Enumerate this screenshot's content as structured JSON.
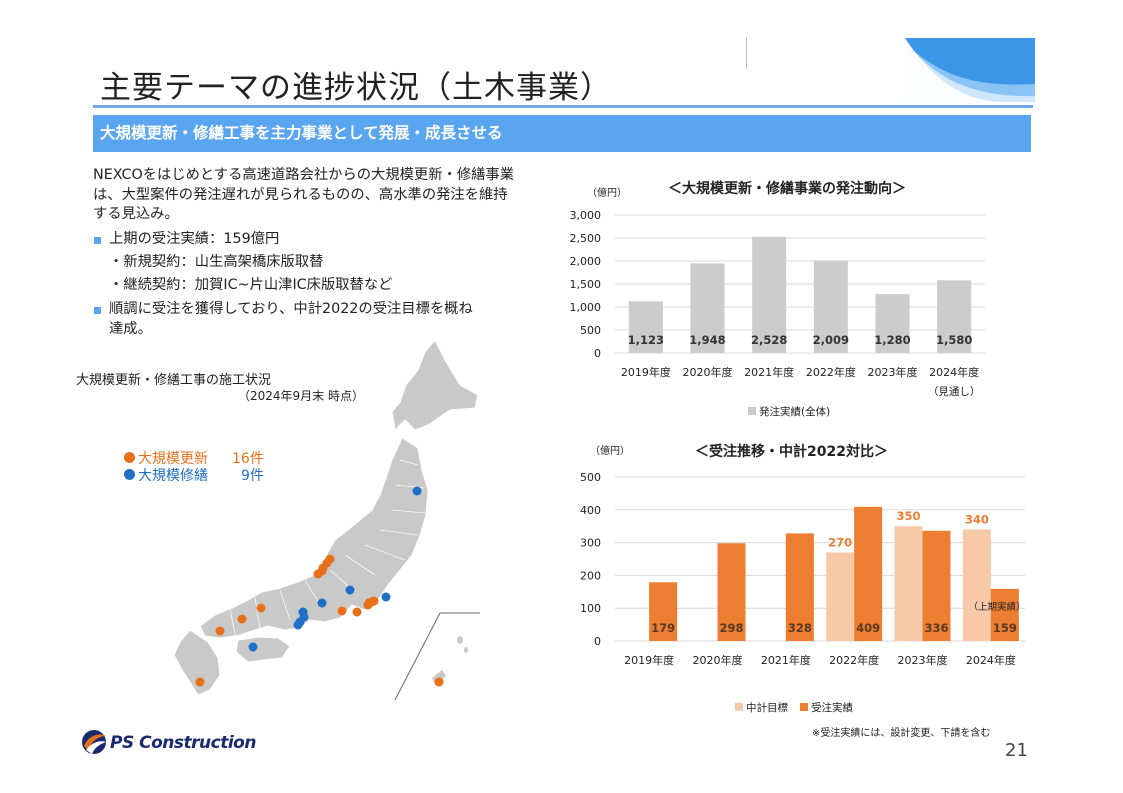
{
  "title": "主要テーマの進捗状況（土木事業）",
  "banner": "大規模更新・修繕工事を主力事業として発展・成長させる",
  "intro": "NEXCOをはじめとする高速道路会社からの大規模更新・修繕事業は、大型案件の発注遅れが見られるものの、高水準の発注を維持する見込み。",
  "bullets": [
    {
      "text": "上期の受注実績：159億円",
      "bullet": true
    },
    {
      "text": "・新規契約：山生高架橋床版取替",
      "bullet": false
    },
    {
      "text": "・継続契約：加賀IC~片山津IC床版取替など",
      "bullet": false
    },
    {
      "text": "順調に受注を獲得しており、中計2022の受注目標を概ね",
      "bullet": true
    },
    {
      "text": "達成。",
      "bullet": false
    }
  ],
  "map": {
    "title": "大規模更新・修繕工事の施工状況",
    "date": "（2024年9月末 時点）",
    "legend": [
      {
        "label": "大規模更新",
        "count": "16件",
        "color": "#e8701a"
      },
      {
        "label": "大規模修繕",
        "count": "9件",
        "color": "#1f6fc6"
      }
    ]
  },
  "chart_data": [
    {
      "type": "bar",
      "title": "＜大規模更新・修繕事業の発注動向＞",
      "unit": "（億円）",
      "categories": [
        "2019年度",
        "2020年度",
        "2021年度",
        "2022年度",
        "2023年度",
        "2024年度"
      ],
      "category_note": "（見通し）",
      "ylim": [
        0,
        3000
      ],
      "yticks": [
        "0",
        "500",
        "1,000",
        "1,500",
        "2,000",
        "2,500",
        "3,000"
      ],
      "series": [
        {
          "name": "発注実績(全体)",
          "values": [
            1123,
            1948,
            2528,
            2009,
            1280,
            1580
          ],
          "labels": [
            "1,123",
            "1,948",
            "2,528",
            "2,009",
            "1,280",
            "1,580"
          ],
          "color": "#cccccc"
        }
      ],
      "legend_position": "bottom"
    },
    {
      "type": "bar",
      "title": "＜受注推移・中計2022対比＞",
      "unit": "（億円）",
      "categories": [
        "2019年度",
        "2020年度",
        "2021年度",
        "2022年度",
        "2023年度",
        "2024年度"
      ],
      "ylim": [
        0,
        500
      ],
      "yticks": [
        "0",
        "100",
        "200",
        "300",
        "400",
        "500"
      ],
      "series": [
        {
          "name": "中計目標",
          "values": [
            null,
            null,
            null,
            270,
            350,
            340
          ],
          "labels": [
            "",
            "",
            "",
            "270",
            "350",
            "340"
          ],
          "color": "#f7c9a8"
        },
        {
          "name": "受注実績",
          "values": [
            179,
            298,
            328,
            409,
            336,
            159
          ],
          "labels": [
            "179",
            "298",
            "328",
            "409",
            "336",
            "159"
          ],
          "color": "#ed7d31"
        }
      ],
      "annotation": "（上期実績）",
      "legend_position": "bottom"
    }
  ],
  "note": "※受注実績には、設計変更、下請を含む",
  "logo": "PS Construction",
  "page_number": "21"
}
